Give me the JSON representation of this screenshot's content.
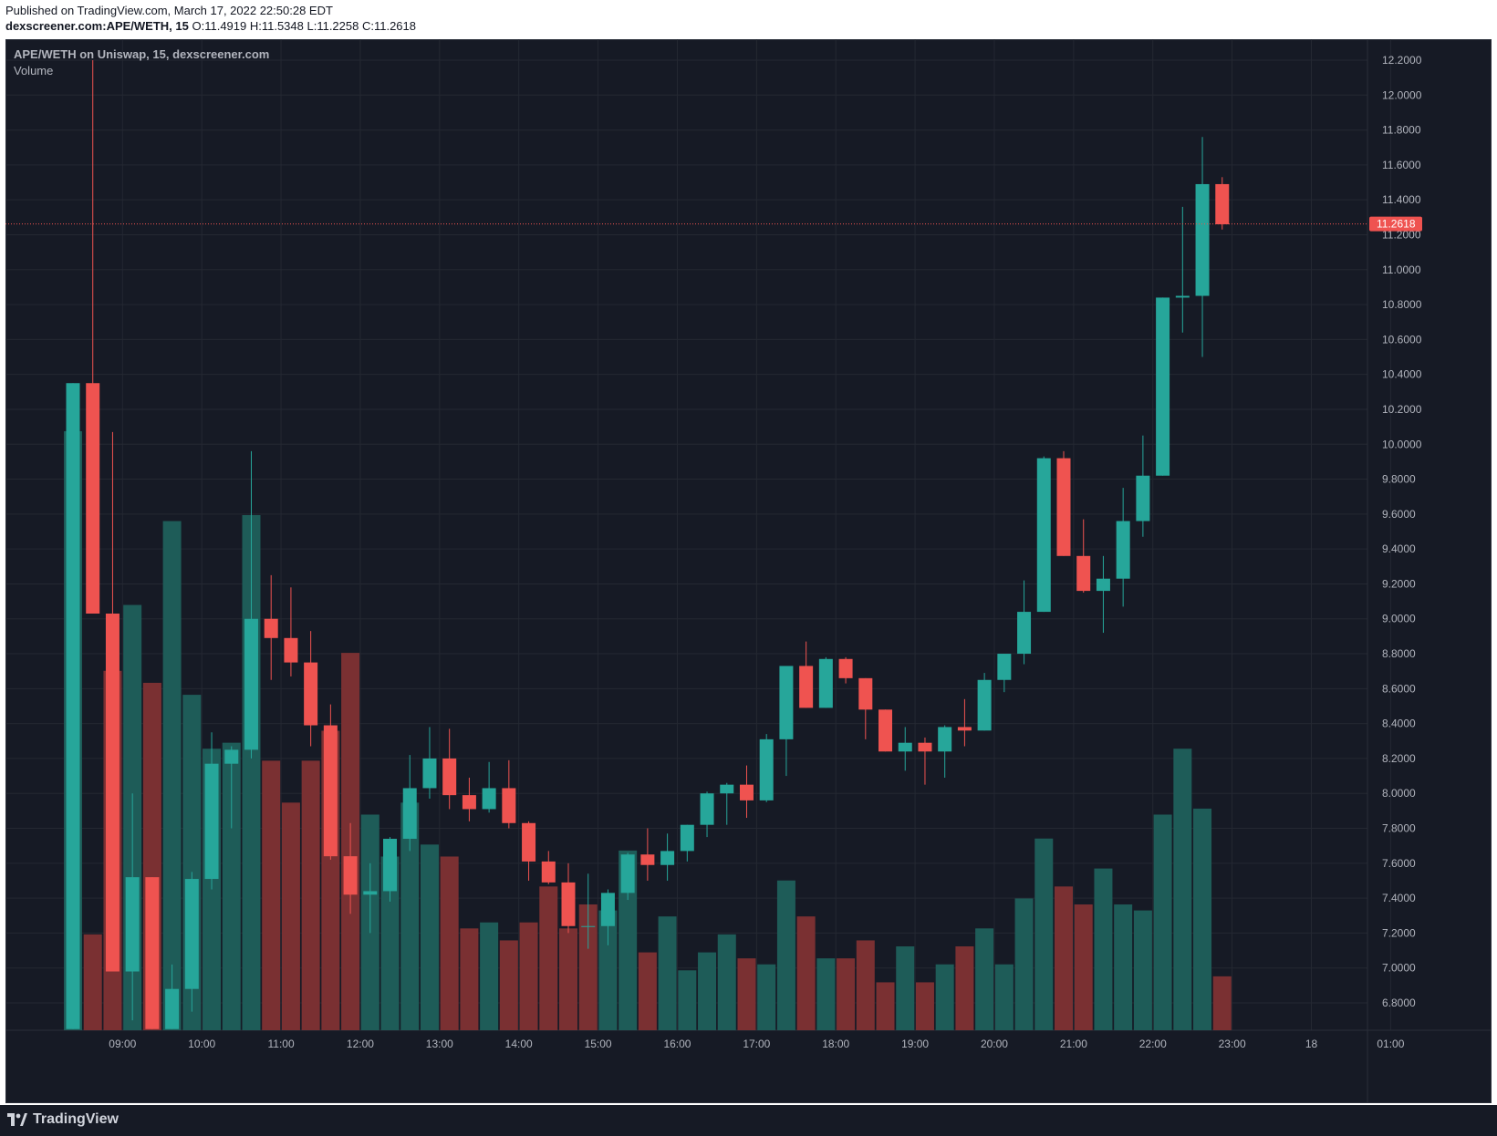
{
  "header": {
    "published": "Published on TradingView.com, March 17, 2022 22:50:28 EDT",
    "symbol": "dexscreener.com:APE/WETH, 15",
    "ohlc": "O:11.4919 H:11.5348 L:11.2258 C:11.2618"
  },
  "chart_title": "APE/WETH on Uniswap, 15, dexscreener.com",
  "volume_label": "Volume",
  "footer": {
    "logo_text": "TradingView"
  },
  "colors": {
    "up": "#26a69a",
    "down": "#ef5350",
    "up_volume": "#1e5c58",
    "down_volume": "#7a3032",
    "background": "#161a25",
    "grid": "#242832",
    "axis_text": "#b2b5be"
  },
  "chart_data": {
    "type": "candlestick",
    "interval_minutes": 15,
    "price_axis": {
      "range": [
        6.65,
        12.2
      ],
      "ticks": [
        "12.2000",
        "12.0000",
        "11.8000",
        "11.6000",
        "11.4000",
        "11.2000",
        "11.0000",
        "10.8000",
        "10.6000",
        "10.4000",
        "10.2000",
        "10.0000",
        "9.8000",
        "9.6000",
        "9.4000",
        "9.2000",
        "9.0000",
        "8.8000",
        "8.6000",
        "8.4000",
        "8.2000",
        "8.0000",
        "7.8000",
        "7.6000",
        "7.4000",
        "7.2000",
        "7.0000",
        "6.8000"
      ]
    },
    "time_axis": {
      "ticks": [
        "09:00",
        "10:00",
        "11:00",
        "12:00",
        "13:00",
        "14:00",
        "15:00",
        "16:00",
        "17:00",
        "18:00",
        "19:00",
        "20:00",
        "21:00",
        "22:00",
        "23:00",
        "18",
        "01:00"
      ]
    },
    "last_price": "11.2618",
    "candles": [
      {
        "time": "08:30",
        "o": 6.65,
        "h": 10.35,
        "l": 6.65,
        "c": 10.35
      },
      {
        "time": "08:45",
        "o": 10.35,
        "h": 12.2,
        "l": 9.03,
        "c": 9.03
      },
      {
        "time": "09:00",
        "o": 9.03,
        "h": 10.07,
        "l": 6.98,
        "c": 6.98
      },
      {
        "time": "09:15",
        "o": 6.98,
        "h": 8.0,
        "l": 6.7,
        "c": 7.52
      },
      {
        "time": "09:30",
        "o": 7.52,
        "h": 7.52,
        "l": 6.65,
        "c": 6.65
      },
      {
        "time": "09:45",
        "o": 6.65,
        "h": 7.02,
        "l": 6.65,
        "c": 6.88
      },
      {
        "time": "10:00",
        "o": 6.88,
        "h": 7.55,
        "l": 6.75,
        "c": 7.51
      },
      {
        "time": "10:15",
        "o": 7.51,
        "h": 8.35,
        "l": 7.45,
        "c": 8.17
      },
      {
        "time": "10:30",
        "o": 8.17,
        "h": 8.27,
        "l": 7.8,
        "c": 8.25
      },
      {
        "time": "10:45",
        "o": 8.25,
        "h": 9.96,
        "l": 8.2,
        "c": 9.0
      },
      {
        "time": "11:00",
        "o": 9.0,
        "h": 9.25,
        "l": 8.65,
        "c": 8.89
      },
      {
        "time": "11:15",
        "o": 8.89,
        "h": 9.18,
        "l": 8.67,
        "c": 8.75
      },
      {
        "time": "11:30",
        "o": 8.75,
        "h": 8.93,
        "l": 8.27,
        "c": 8.39
      },
      {
        "time": "11:45",
        "o": 8.39,
        "h": 8.51,
        "l": 7.62,
        "c": 7.64
      },
      {
        "time": "12:00",
        "o": 7.64,
        "h": 7.83,
        "l": 7.31,
        "c": 7.42
      },
      {
        "time": "12:15",
        "o": 7.42,
        "h": 7.6,
        "l": 7.2,
        "c": 7.44
      },
      {
        "time": "12:30",
        "o": 7.44,
        "h": 7.75,
        "l": 7.38,
        "c": 7.74
      },
      {
        "time": "12:45",
        "o": 7.74,
        "h": 8.22,
        "l": 7.67,
        "c": 8.03
      },
      {
        "time": "13:00",
        "o": 8.03,
        "h": 8.38,
        "l": 7.97,
        "c": 8.2
      },
      {
        "time": "13:15",
        "o": 8.2,
        "h": 8.37,
        "l": 7.91,
        "c": 7.99
      },
      {
        "time": "13:30",
        "o": 7.99,
        "h": 8.09,
        "l": 7.84,
        "c": 7.91
      },
      {
        "time": "13:45",
        "o": 7.91,
        "h": 8.18,
        "l": 7.89,
        "c": 8.03
      },
      {
        "time": "14:00",
        "o": 8.03,
        "h": 8.19,
        "l": 7.8,
        "c": 7.83
      },
      {
        "time": "14:15",
        "o": 7.83,
        "h": 7.84,
        "l": 7.5,
        "c": 7.61
      },
      {
        "time": "14:30",
        "o": 7.61,
        "h": 7.67,
        "l": 7.48,
        "c": 7.49
      },
      {
        "time": "14:45",
        "o": 7.49,
        "h": 7.6,
        "l": 7.2,
        "c": 7.24
      },
      {
        "time": "15:00",
        "o": 7.24,
        "h": 7.54,
        "l": 7.11,
        "c": 7.24
      },
      {
        "time": "15:15",
        "o": 7.24,
        "h": 7.45,
        "l": 7.13,
        "c": 7.43
      },
      {
        "time": "15:30",
        "o": 7.43,
        "h": 7.66,
        "l": 7.39,
        "c": 7.65
      },
      {
        "time": "15:45",
        "o": 7.65,
        "h": 7.8,
        "l": 7.5,
        "c": 7.59
      },
      {
        "time": "16:00",
        "o": 7.59,
        "h": 7.77,
        "l": 7.5,
        "c": 7.67
      },
      {
        "time": "16:15",
        "o": 7.67,
        "h": 7.82,
        "l": 7.61,
        "c": 7.82
      },
      {
        "time": "16:30",
        "o": 7.82,
        "h": 8.01,
        "l": 7.75,
        "c": 8.0
      },
      {
        "time": "16:45",
        "o": 8.0,
        "h": 8.06,
        "l": 7.82,
        "c": 8.05
      },
      {
        "time": "17:00",
        "o": 8.05,
        "h": 8.16,
        "l": 7.86,
        "c": 7.96
      },
      {
        "time": "17:15",
        "o": 7.96,
        "h": 8.34,
        "l": 7.95,
        "c": 8.31
      },
      {
        "time": "17:30",
        "o": 8.31,
        "h": 8.72,
        "l": 8.1,
        "c": 8.73
      },
      {
        "time": "17:45",
        "o": 8.73,
        "h": 8.87,
        "l": 8.49,
        "c": 8.49
      },
      {
        "time": "18:00",
        "o": 8.49,
        "h": 8.78,
        "l": 8.49,
        "c": 8.77
      },
      {
        "time": "18:15",
        "o": 8.77,
        "h": 8.78,
        "l": 8.63,
        "c": 8.66
      },
      {
        "time": "18:30",
        "o": 8.66,
        "h": 8.66,
        "l": 8.31,
        "c": 8.48
      },
      {
        "time": "18:45",
        "o": 8.48,
        "h": 8.48,
        "l": 8.24,
        "c": 8.24
      },
      {
        "time": "19:00",
        "o": 8.24,
        "h": 8.38,
        "l": 8.13,
        "c": 8.29
      },
      {
        "time": "19:15",
        "o": 8.29,
        "h": 8.32,
        "l": 8.05,
        "c": 8.24
      },
      {
        "time": "19:30",
        "o": 8.24,
        "h": 8.39,
        "l": 8.09,
        "c": 8.38
      },
      {
        "time": "19:45",
        "o": 8.38,
        "h": 8.54,
        "l": 8.27,
        "c": 8.36
      },
      {
        "time": "20:00",
        "o": 8.36,
        "h": 8.69,
        "l": 8.36,
        "c": 8.65
      },
      {
        "time": "20:15",
        "o": 8.65,
        "h": 8.8,
        "l": 8.58,
        "c": 8.8
      },
      {
        "time": "20:30",
        "o": 8.8,
        "h": 9.22,
        "l": 8.74,
        "c": 9.04
      },
      {
        "time": "20:45",
        "o": 9.04,
        "h": 9.93,
        "l": 9.04,
        "c": 9.92
      },
      {
        "time": "21:00",
        "o": 9.92,
        "h": 9.96,
        "l": 9.36,
        "c": 9.36
      },
      {
        "time": "21:15",
        "o": 9.36,
        "h": 9.57,
        "l": 9.15,
        "c": 9.16
      },
      {
        "time": "21:30",
        "o": 9.16,
        "h": 9.36,
        "l": 8.92,
        "c": 9.23
      },
      {
        "time": "21:45",
        "o": 9.23,
        "h": 9.75,
        "l": 9.07,
        "c": 9.56
      },
      {
        "time": "22:00",
        "o": 9.56,
        "h": 10.05,
        "l": 9.47,
        "c": 9.82
      },
      {
        "time": "22:15",
        "o": 9.82,
        "h": 10.84,
        "l": 9.82,
        "c": 10.84
      },
      {
        "time": "22:30",
        "o": 10.84,
        "h": 11.36,
        "l": 10.64,
        "c": 10.85
      },
      {
        "time": "22:45",
        "o": 10.85,
        "h": 11.76,
        "l": 10.5,
        "c": 11.49
      },
      {
        "time": "23:00",
        "o": 11.49,
        "h": 11.53,
        "l": 11.23,
        "c": 11.26
      }
    ],
    "volume": [
      {
        "up": true,
        "v": 1
      },
      {
        "up": false,
        "v": 0.16
      },
      {
        "up": false,
        "v": 0.6
      },
      {
        "up": true,
        "v": 0.71
      },
      {
        "up": false,
        "v": 0.58
      },
      {
        "up": true,
        "v": 0.85
      },
      {
        "up": true,
        "v": 0.56
      },
      {
        "up": true,
        "v": 0.47
      },
      {
        "up": true,
        "v": 0.48
      },
      {
        "up": true,
        "v": 0.86
      },
      {
        "up": false,
        "v": 0.45
      },
      {
        "up": false,
        "v": 0.38
      },
      {
        "up": false,
        "v": 0.45
      },
      {
        "up": false,
        "v": 0.5
      },
      {
        "up": false,
        "v": 0.63
      },
      {
        "up": true,
        "v": 0.36
      },
      {
        "up": true,
        "v": 0.29
      },
      {
        "up": true,
        "v": 0.38
      },
      {
        "up": true,
        "v": 0.31
      },
      {
        "up": false,
        "v": 0.29
      },
      {
        "up": false,
        "v": 0.17
      },
      {
        "up": true,
        "v": 0.18
      },
      {
        "up": false,
        "v": 0.15
      },
      {
        "up": false,
        "v": 0.18
      },
      {
        "up": false,
        "v": 0.24
      },
      {
        "up": false,
        "v": 0.17
      },
      {
        "up": false,
        "v": 0.21
      },
      {
        "up": true,
        "v": 0.2
      },
      {
        "up": true,
        "v": 0.3
      },
      {
        "up": false,
        "v": 0.13
      },
      {
        "up": true,
        "v": 0.19
      },
      {
        "up": true,
        "v": 0.1
      },
      {
        "up": true,
        "v": 0.13
      },
      {
        "up": true,
        "v": 0.16
      },
      {
        "up": false,
        "v": 0.12
      },
      {
        "up": true,
        "v": 0.11
      },
      {
        "up": true,
        "v": 0.25
      },
      {
        "up": false,
        "v": 0.19
      },
      {
        "up": true,
        "v": 0.12
      },
      {
        "up": false,
        "v": 0.12
      },
      {
        "up": false,
        "v": 0.15
      },
      {
        "up": false,
        "v": 0.08
      },
      {
        "up": true,
        "v": 0.14
      },
      {
        "up": false,
        "v": 0.08
      },
      {
        "up": true,
        "v": 0.11
      },
      {
        "up": false,
        "v": 0.14
      },
      {
        "up": true,
        "v": 0.17
      },
      {
        "up": true,
        "v": 0.11
      },
      {
        "up": true,
        "v": 0.22
      },
      {
        "up": true,
        "v": 0.32
      },
      {
        "up": false,
        "v": 0.24
      },
      {
        "up": false,
        "v": 0.21
      },
      {
        "up": true,
        "v": 0.27
      },
      {
        "up": true,
        "v": 0.21
      },
      {
        "up": true,
        "v": 0.2
      },
      {
        "up": true,
        "v": 0.36
      },
      {
        "up": true,
        "v": 0.47
      },
      {
        "up": true,
        "v": 0.37
      },
      {
        "up": false,
        "v": 0.09
      }
    ]
  }
}
